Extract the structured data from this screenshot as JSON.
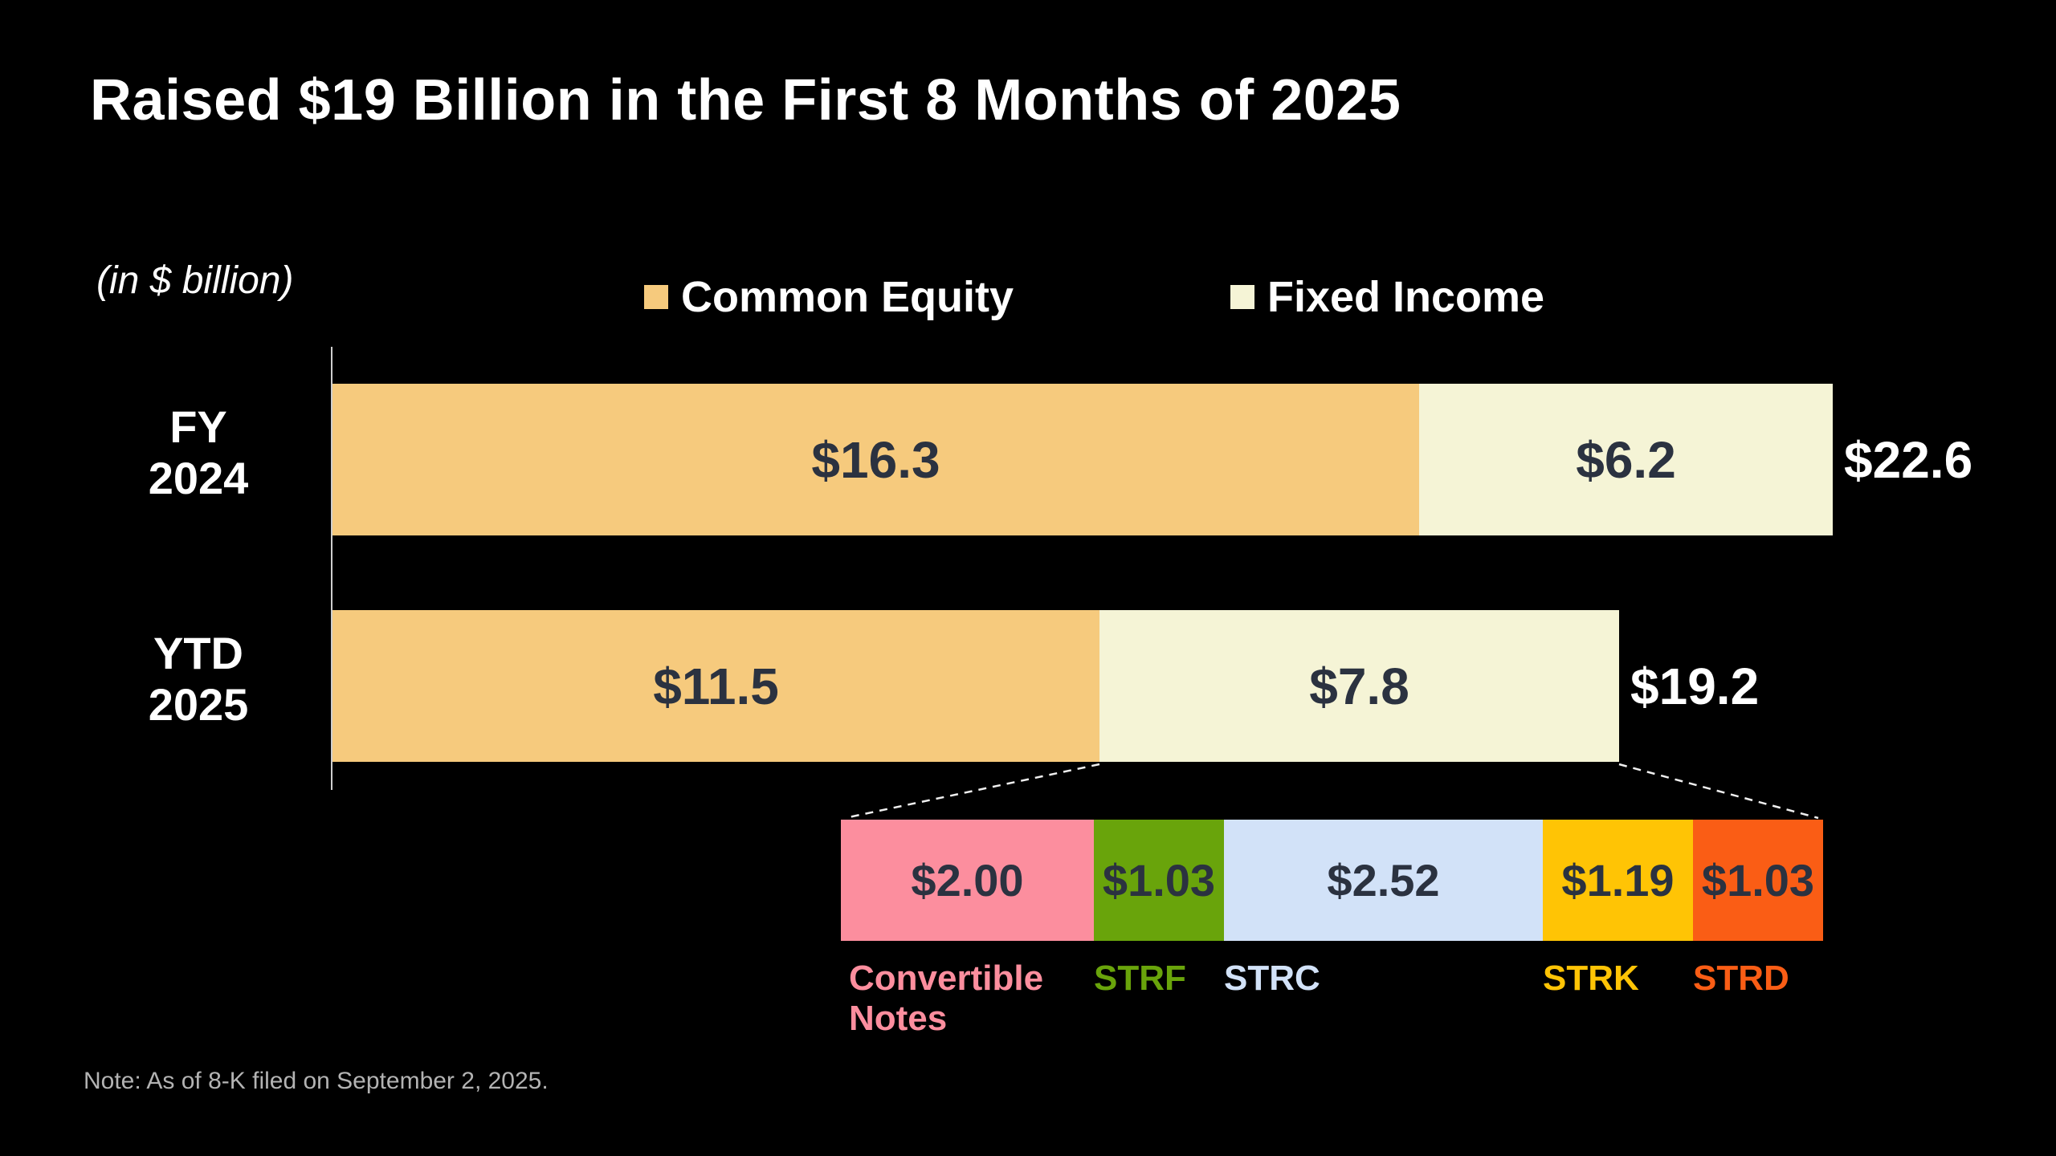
{
  "title": "Raised $19 Billion in the First 8 Months of 2025",
  "units_label": "(in $ billion)",
  "note": "Note: As of 8-K filed on September 2, 2025.",
  "colors": {
    "background": "#000000",
    "title_text": "#FFFFFF",
    "value_text": "#2B3240",
    "axis_line": "#CFCFCF",
    "note_text": "#B3B3B3"
  },
  "legend": {
    "common_equity": {
      "label": "Common Equity",
      "color": "#F6CA7D"
    },
    "fixed_income": {
      "label": "Fixed Income",
      "color": "#F5F4D6"
    }
  },
  "chart_data": {
    "type": "bar",
    "orientation": "horizontal",
    "stacked": true,
    "grid": false,
    "legend_position": "top",
    "unit": "$ billion",
    "categories": [
      "FY 2024",
      "YTD 2025"
    ],
    "series": [
      {
        "name": "Common Equity",
        "color": "#F6CA7D",
        "values": [
          16.3,
          11.5
        ],
        "labels": [
          "$16.3",
          "$11.5"
        ]
      },
      {
        "name": "Fixed Income",
        "color": "#F5F4D6",
        "values": [
          6.2,
          7.8
        ],
        "labels": [
          "$6.2",
          "$7.8"
        ]
      }
    ],
    "totals": [
      22.6,
      19.2
    ],
    "total_labels": [
      "$22.6",
      "$19.2"
    ],
    "breakdown": {
      "of": "YTD 2025 Fixed Income",
      "total": 7.77,
      "segments": [
        {
          "name": "Convertible Notes",
          "value": 2.0,
          "label": "$2.00",
          "color": "#FC8E9E"
        },
        {
          "name": "STRF",
          "value": 1.03,
          "label": "$1.03",
          "color": "#69A40B"
        },
        {
          "name": "STRC",
          "value": 2.52,
          "label": "$2.52",
          "color": "#D2E2F8"
        },
        {
          "name": "STRK",
          "value": 1.19,
          "label": "$1.19",
          "color": "#FFC405"
        },
        {
          "name": "STRD",
          "value": 1.03,
          "label": "$1.03",
          "color": "#FA5D15"
        }
      ]
    }
  }
}
